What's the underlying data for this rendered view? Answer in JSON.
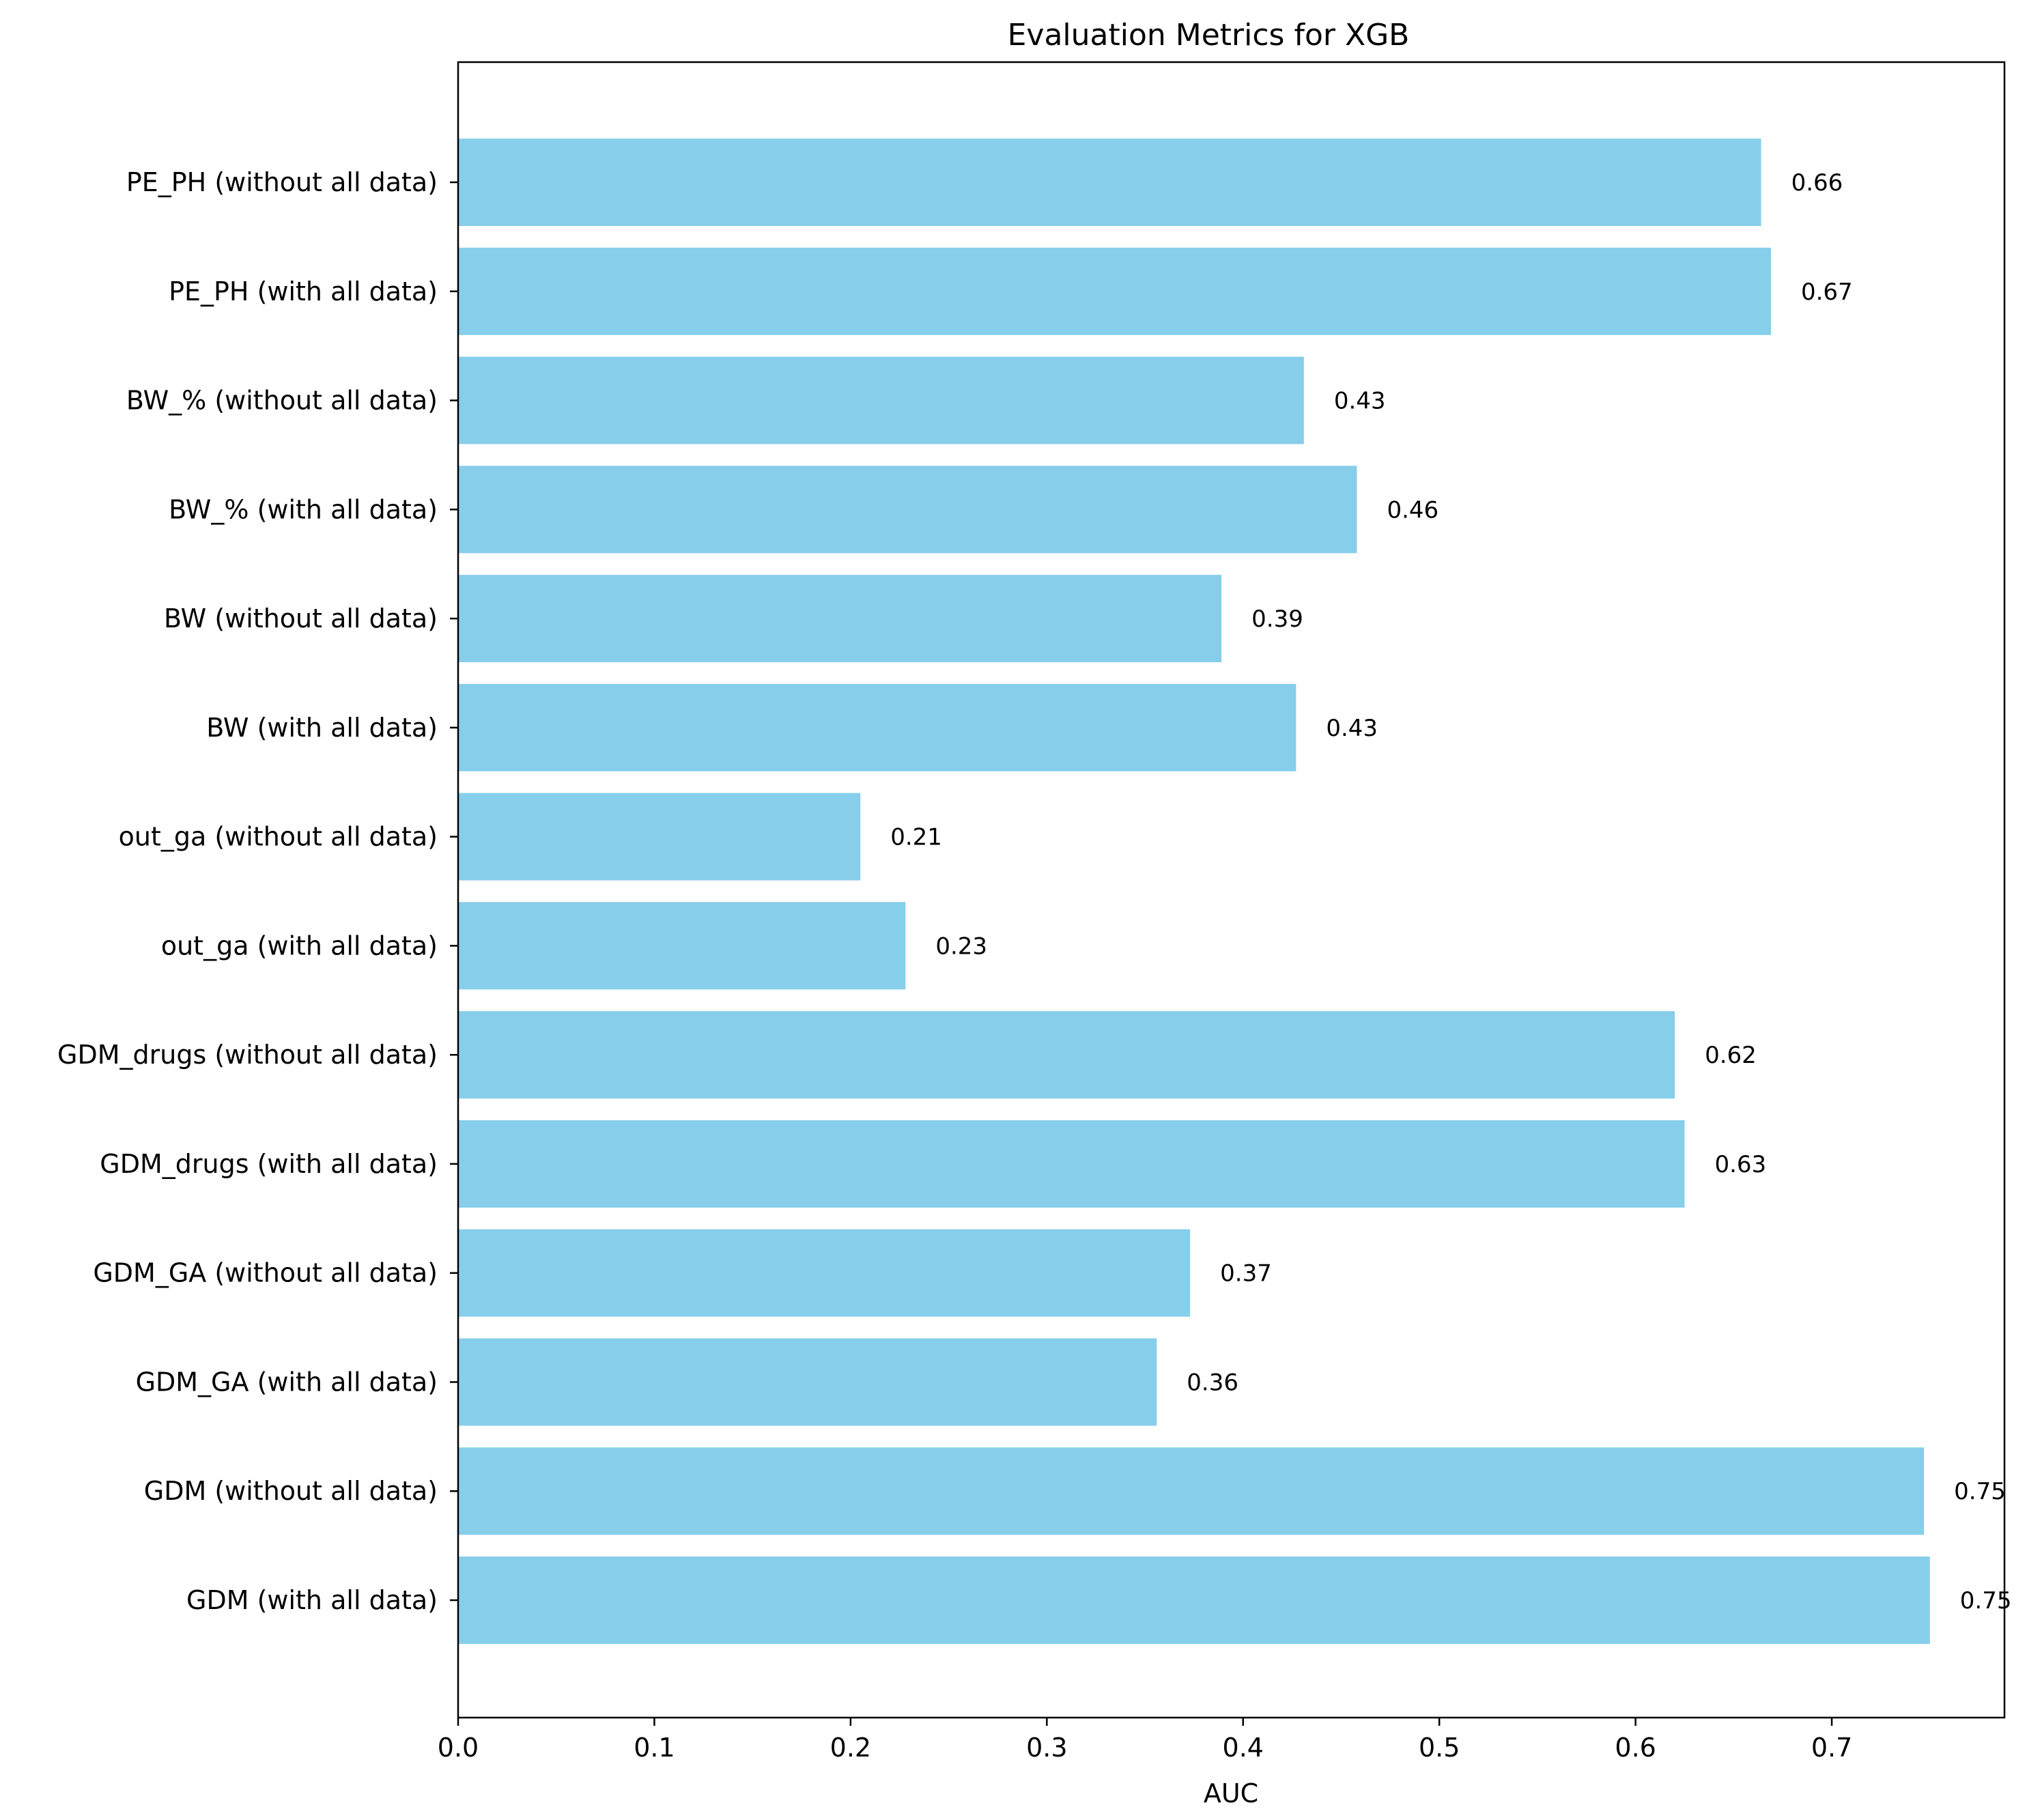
{
  "chart_data": {
    "type": "bar",
    "orientation": "horizontal",
    "title": "Evaluation Metrics for XGB",
    "xlabel": "AUC",
    "ylabel": "",
    "xlim": [
      0,
      0.788
    ],
    "xticks": [
      0.0,
      0.1,
      0.2,
      0.3,
      0.4,
      0.5,
      0.6,
      0.7
    ],
    "xtick_labels": [
      "0.0",
      "0.1",
      "0.2",
      "0.3",
      "0.4",
      "0.5",
      "0.6",
      "0.7"
    ],
    "grid": false,
    "bar_color": "#87CEEB",
    "categories": [
      "PE_PH (without all data)",
      "PE_PH (with all data)",
      "BW_% (without all data)",
      "BW_% (with all data)",
      "BW (without all data)",
      "BW (with all data)",
      "out_ga (without all data)",
      "out_ga (with all data)",
      "GDM_drugs (without all data)",
      "GDM_drugs (with all data)",
      "GDM_GA (without all data)",
      "GDM_GA (with all data)",
      "GDM (without all data)",
      "GDM (with all data)"
    ],
    "values": [
      0.664,
      0.669,
      0.431,
      0.458,
      0.389,
      0.427,
      0.205,
      0.228,
      0.62,
      0.625,
      0.373,
      0.356,
      0.747,
      0.75
    ],
    "value_labels": [
      "0.66",
      "0.67",
      "0.43",
      "0.46",
      "0.39",
      "0.43",
      "0.21",
      "0.23",
      "0.62",
      "0.63",
      "0.37",
      "0.36",
      "0.75",
      "0.75"
    ]
  }
}
